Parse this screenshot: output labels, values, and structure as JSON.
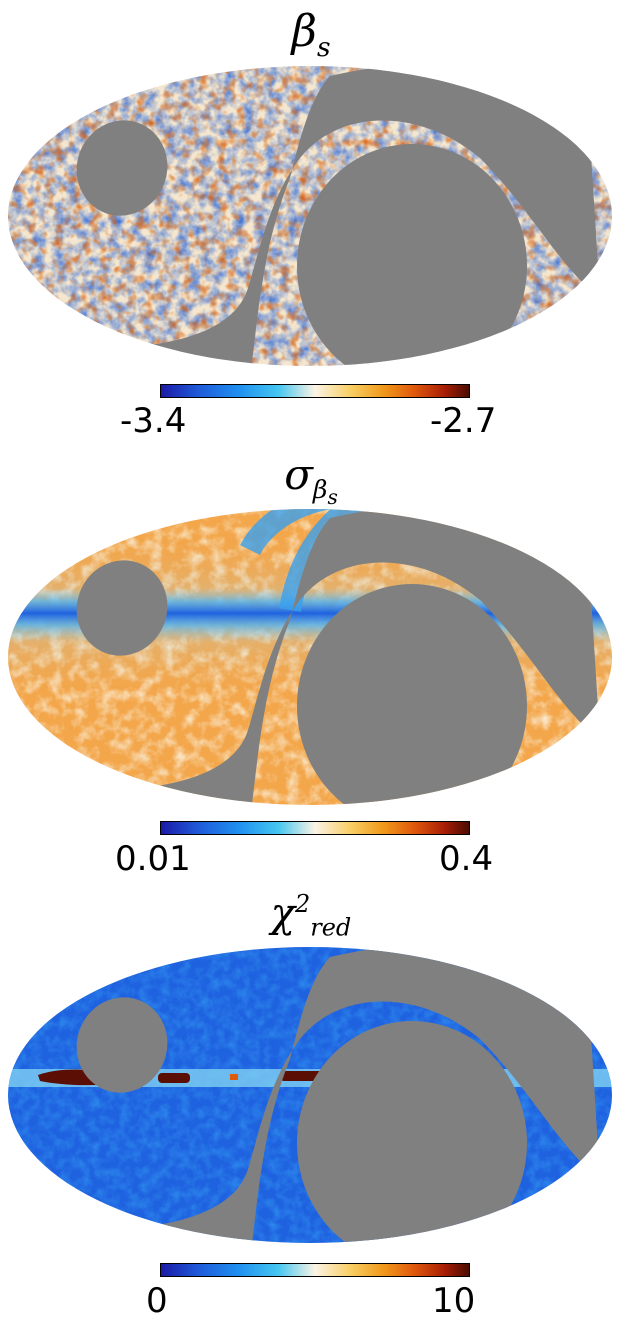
{
  "colors": {
    "mask": "#808080",
    "background": "#ffffff",
    "colormap": [
      "#1b1aa6",
      "#1f5ad8",
      "#1f8ff0",
      "#45c6f0",
      "#fbf4e6",
      "#f8cd60",
      "#f09a1c",
      "#e05a0c",
      "#a81e06",
      "#4a0c02"
    ]
  },
  "panels": [
    {
      "title_symbol": "β",
      "title_sub": "s",
      "colorbar_min": "-3.4",
      "colorbar_max": "-2.7",
      "texture": "mottled-blue-orange",
      "base_color": "#f4e6cf"
    },
    {
      "title_symbol": "σ",
      "title_sub": "β",
      "title_sub_sub": "s",
      "colorbar_min": "0.01",
      "colorbar_max": "0.4",
      "texture": "orange-with-blue-plane",
      "base_color": "#f3a64a"
    },
    {
      "title_symbol": "χ",
      "title_sup": "2",
      "title_sub": "red",
      "colorbar_min": "0",
      "colorbar_max": "10",
      "texture": "blue-with-red-plane",
      "base_color": "#1f62e0"
    }
  ]
}
